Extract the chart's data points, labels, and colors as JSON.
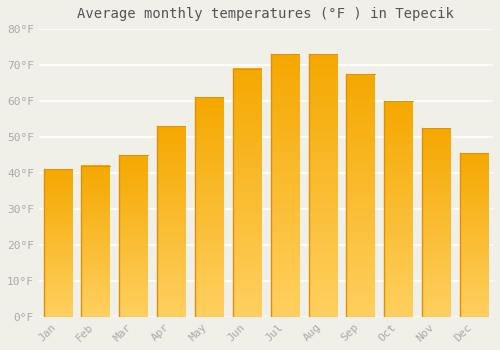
{
  "title": "Average monthly temperatures (°F ) in Tepecik",
  "months": [
    "Jan",
    "Feb",
    "Mar",
    "Apr",
    "May",
    "Jun",
    "Jul",
    "Aug",
    "Sep",
    "Oct",
    "Nov",
    "Dec"
  ],
  "values": [
    41,
    42,
    45,
    53,
    61,
    69,
    73,
    73,
    67.5,
    60,
    52.5,
    45.5
  ],
  "bar_color_bottom": "#FFD060",
  "bar_color_top": "#F5A800",
  "bar_edge_color": "#E09000",
  "ylim": [
    0,
    80
  ],
  "yticks": [
    0,
    10,
    20,
    30,
    40,
    50,
    60,
    70,
    80
  ],
  "ytick_labels": [
    "0°F",
    "10°F",
    "20°F",
    "30°F",
    "40°F",
    "50°F",
    "60°F",
    "70°F",
    "80°F"
  ],
  "background_color": "#F0EFE8",
  "grid_color": "#FFFFFF",
  "title_fontsize": 10,
  "tick_fontsize": 8,
  "tick_color": "#AAAAAA",
  "title_color": "#555555"
}
